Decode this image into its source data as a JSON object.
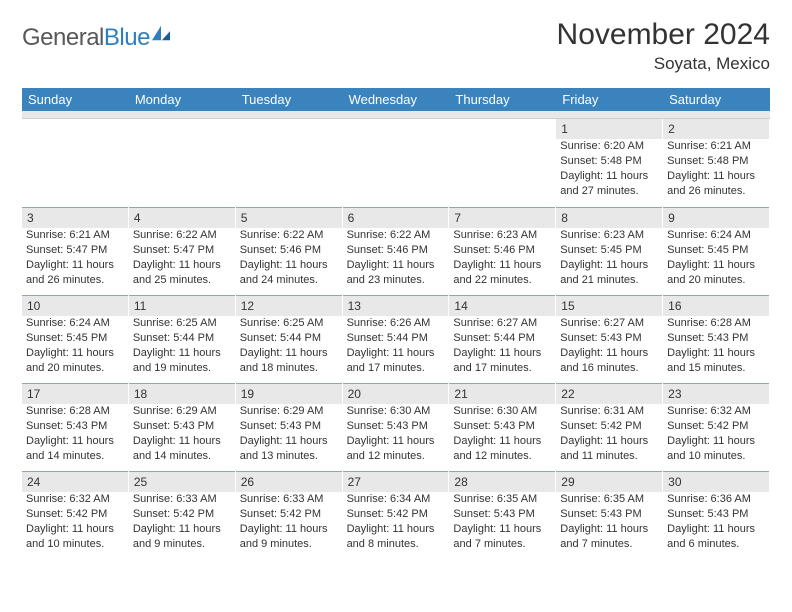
{
  "brand": {
    "name_gray": "General",
    "name_blue": "Blue"
  },
  "title": "November 2024",
  "location": "Soyata, Mexico",
  "colors": {
    "header_blue": "#3b83bd",
    "daynum_bg": "#e8e8e8",
    "row_divider": "#8aa8c2",
    "text": "#333333",
    "logo_gray": "#58595b",
    "logo_blue": "#2f7fbf"
  },
  "weekdays": [
    "Sunday",
    "Monday",
    "Tuesday",
    "Wednesday",
    "Thursday",
    "Friday",
    "Saturday"
  ],
  "calendar": {
    "first_weekday_index": 5,
    "days": [
      {
        "n": 1,
        "sunrise": "6:20 AM",
        "sunset": "5:48 PM",
        "daylight": "11 hours and 27 minutes."
      },
      {
        "n": 2,
        "sunrise": "6:21 AM",
        "sunset": "5:48 PM",
        "daylight": "11 hours and 26 minutes."
      },
      {
        "n": 3,
        "sunrise": "6:21 AM",
        "sunset": "5:47 PM",
        "daylight": "11 hours and 26 minutes."
      },
      {
        "n": 4,
        "sunrise": "6:22 AM",
        "sunset": "5:47 PM",
        "daylight": "11 hours and 25 minutes."
      },
      {
        "n": 5,
        "sunrise": "6:22 AM",
        "sunset": "5:46 PM",
        "daylight": "11 hours and 24 minutes."
      },
      {
        "n": 6,
        "sunrise": "6:22 AM",
        "sunset": "5:46 PM",
        "daylight": "11 hours and 23 minutes."
      },
      {
        "n": 7,
        "sunrise": "6:23 AM",
        "sunset": "5:46 PM",
        "daylight": "11 hours and 22 minutes."
      },
      {
        "n": 8,
        "sunrise": "6:23 AM",
        "sunset": "5:45 PM",
        "daylight": "11 hours and 21 minutes."
      },
      {
        "n": 9,
        "sunrise": "6:24 AM",
        "sunset": "5:45 PM",
        "daylight": "11 hours and 20 minutes."
      },
      {
        "n": 10,
        "sunrise": "6:24 AM",
        "sunset": "5:45 PM",
        "daylight": "11 hours and 20 minutes."
      },
      {
        "n": 11,
        "sunrise": "6:25 AM",
        "sunset": "5:44 PM",
        "daylight": "11 hours and 19 minutes."
      },
      {
        "n": 12,
        "sunrise": "6:25 AM",
        "sunset": "5:44 PM",
        "daylight": "11 hours and 18 minutes."
      },
      {
        "n": 13,
        "sunrise": "6:26 AM",
        "sunset": "5:44 PM",
        "daylight": "11 hours and 17 minutes."
      },
      {
        "n": 14,
        "sunrise": "6:27 AM",
        "sunset": "5:44 PM",
        "daylight": "11 hours and 17 minutes."
      },
      {
        "n": 15,
        "sunrise": "6:27 AM",
        "sunset": "5:43 PM",
        "daylight": "11 hours and 16 minutes."
      },
      {
        "n": 16,
        "sunrise": "6:28 AM",
        "sunset": "5:43 PM",
        "daylight": "11 hours and 15 minutes."
      },
      {
        "n": 17,
        "sunrise": "6:28 AM",
        "sunset": "5:43 PM",
        "daylight": "11 hours and 14 minutes."
      },
      {
        "n": 18,
        "sunrise": "6:29 AM",
        "sunset": "5:43 PM",
        "daylight": "11 hours and 14 minutes."
      },
      {
        "n": 19,
        "sunrise": "6:29 AM",
        "sunset": "5:43 PM",
        "daylight": "11 hours and 13 minutes."
      },
      {
        "n": 20,
        "sunrise": "6:30 AM",
        "sunset": "5:43 PM",
        "daylight": "11 hours and 12 minutes."
      },
      {
        "n": 21,
        "sunrise": "6:30 AM",
        "sunset": "5:43 PM",
        "daylight": "11 hours and 12 minutes."
      },
      {
        "n": 22,
        "sunrise": "6:31 AM",
        "sunset": "5:42 PM",
        "daylight": "11 hours and 11 minutes."
      },
      {
        "n": 23,
        "sunrise": "6:32 AM",
        "sunset": "5:42 PM",
        "daylight": "11 hours and 10 minutes."
      },
      {
        "n": 24,
        "sunrise": "6:32 AM",
        "sunset": "5:42 PM",
        "daylight": "11 hours and 10 minutes."
      },
      {
        "n": 25,
        "sunrise": "6:33 AM",
        "sunset": "5:42 PM",
        "daylight": "11 hours and 9 minutes."
      },
      {
        "n": 26,
        "sunrise": "6:33 AM",
        "sunset": "5:42 PM",
        "daylight": "11 hours and 9 minutes."
      },
      {
        "n": 27,
        "sunrise": "6:34 AM",
        "sunset": "5:42 PM",
        "daylight": "11 hours and 8 minutes."
      },
      {
        "n": 28,
        "sunrise": "6:35 AM",
        "sunset": "5:43 PM",
        "daylight": "11 hours and 7 minutes."
      },
      {
        "n": 29,
        "sunrise": "6:35 AM",
        "sunset": "5:43 PM",
        "daylight": "11 hours and 7 minutes."
      },
      {
        "n": 30,
        "sunrise": "6:36 AM",
        "sunset": "5:43 PM",
        "daylight": "11 hours and 6 minutes."
      }
    ]
  },
  "labels": {
    "sunrise_prefix": "Sunrise: ",
    "sunset_prefix": "Sunset: ",
    "daylight_prefix": "Daylight: "
  }
}
